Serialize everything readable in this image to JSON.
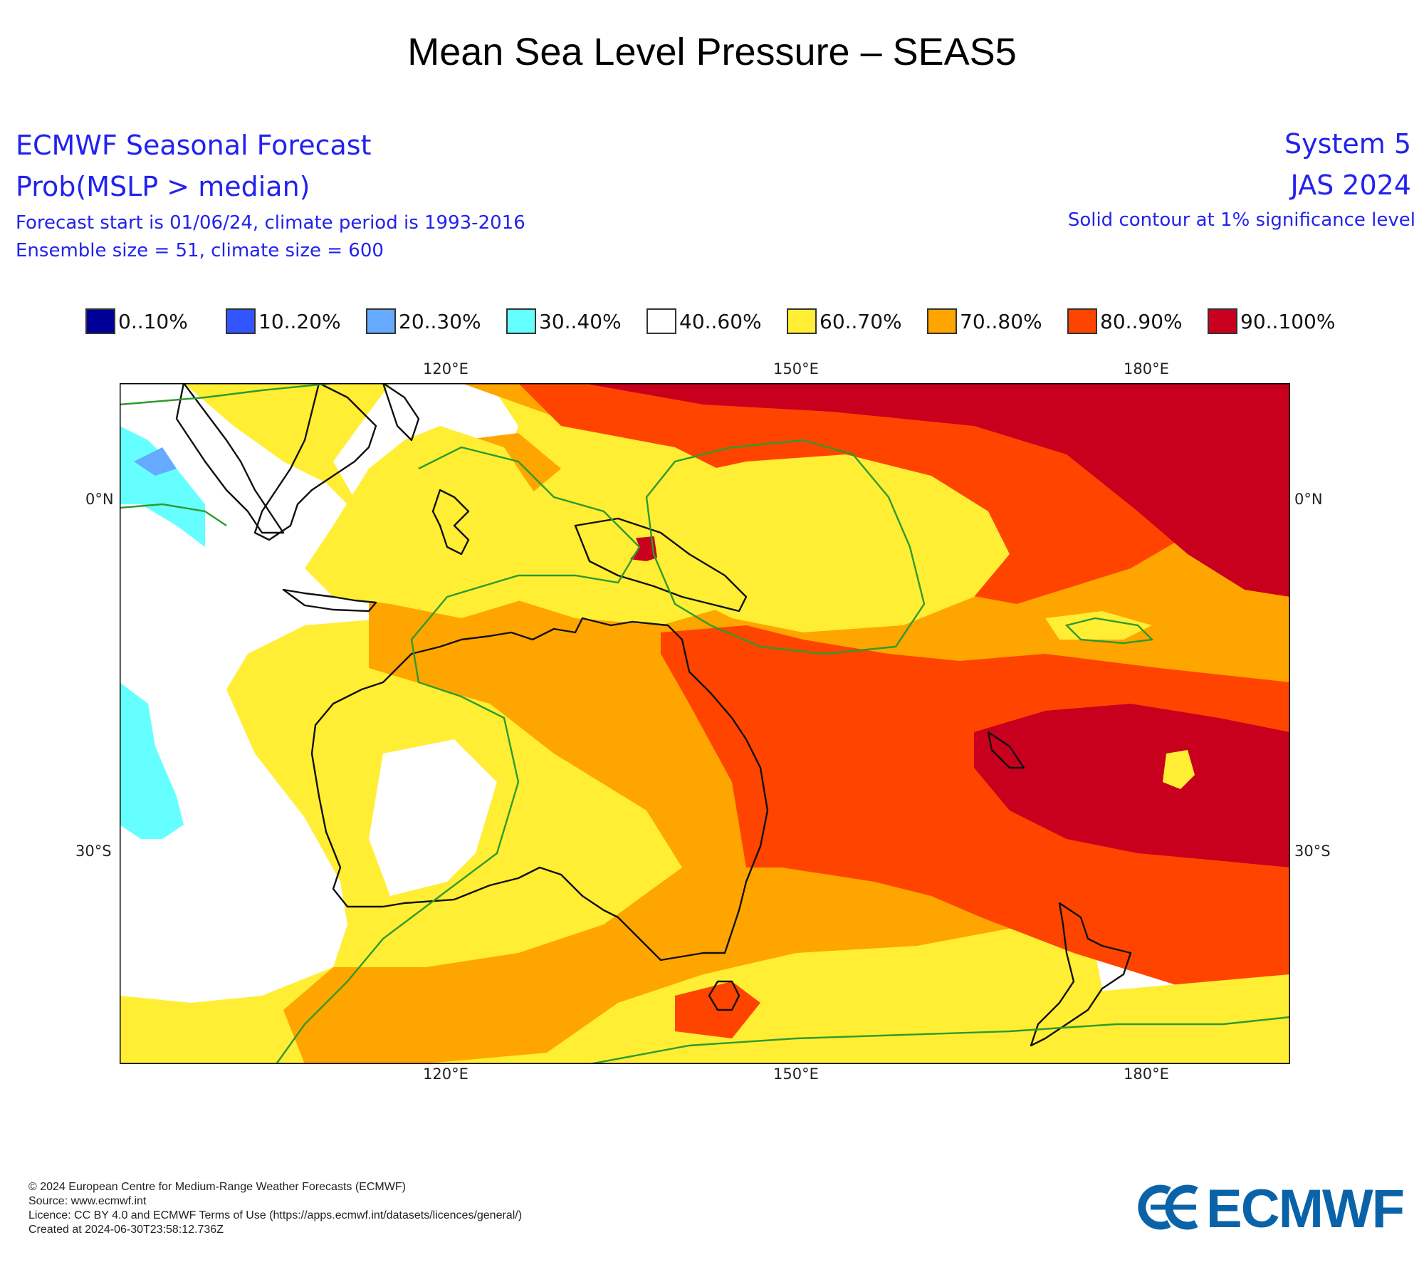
{
  "title": "Mean Sea Level Pressure – SEAS5",
  "header_left": {
    "line1": "ECMWF Seasonal Forecast",
    "line2": "Prob(MSLP > median)",
    "line3": "Forecast start is 01/06/24, climate period is 1993-2016",
    "line4": "Ensemble size = 51, climate size = 600"
  },
  "header_right": {
    "line1": "System 5",
    "line2": "JAS 2024",
    "line3": "Solid contour at 1% significance level"
  },
  "legend": [
    {
      "label": "0..10%",
      "color": "#000099"
    },
    {
      "label": "10..20%",
      "color": "#3355ff"
    },
    {
      "label": "20..30%",
      "color": "#66aaff"
    },
    {
      "label": "30..40%",
      "color": "#66ffff"
    },
    {
      "label": "40..60%",
      "color": "#ffffff"
    },
    {
      "label": "60..70%",
      "color": "#ffee33"
    },
    {
      "label": "70..80%",
      "color": "#ffa500"
    },
    {
      "label": "80..90%",
      "color": "#ff4400"
    },
    {
      "label": "90..100%",
      "color": "#c8001e"
    }
  ],
  "axes": {
    "lon_top": [
      "120°E",
      "150°E",
      "180°E"
    ],
    "lon_bottom": [
      "120°E",
      "150°E",
      "180°E"
    ],
    "lat_left": [
      "0°N",
      "30°S"
    ],
    "lat_right": [
      "0°N",
      "30°S"
    ]
  },
  "footer": {
    "line1": "© 2024 European Centre for Medium-Range Weather Forecasts (ECMWF)",
    "line2": "Source: www.ecmwf.int",
    "line3": "Licence: CC BY 4.0 and ECMWF Terms of Use (https://apps.ecmwf.int/datasets/licences/general/)",
    "line4": "Created at 2024-06-30T23:58:12.736Z"
  },
  "logo": {
    "text": "ECMWF",
    "color": "#0a63a8"
  },
  "contour_color": "#2e9a2e"
}
